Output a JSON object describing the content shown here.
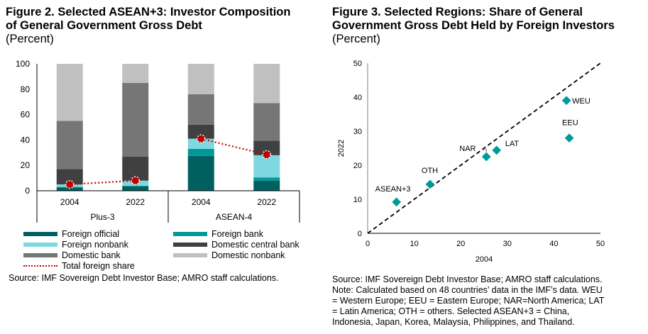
{
  "figure2": {
    "title_line1": "Figure 2. Selected ASEAN+3: Investor Composition",
    "title_line2": "of General Government Gross Debt",
    "unit": "(Percent)",
    "source": "Source: IMF Sovereign Debt Investor Base; AMRO staff calculations."
  },
  "figure3": {
    "title_line1": "Figure 3. Selected Regions: Share of General",
    "title_line2": "Government Gross Debt Held by Foreign Investors",
    "unit": "(Percent)",
    "source_lines": [
      "Source: IMF Sovereign Debt Investor Base; AMRO staff calculations.",
      "Note: Calculated based on 48 countries’ data in the IMF’s data. WEU",
      "= Western Europe; EEU = Eastern Europe; NAR=North America; LAT",
      "= Latin America; OTH = others. Selected ASEAN+3 = China,",
      "Indonesia, Japan, Korea, Malaysia, Philippines, and Thailand."
    ]
  },
  "chart_data": [
    {
      "type": "bar",
      "stacked": true,
      "title": "Figure 2. Selected ASEAN+3: Investor Composition of General Government Gross Debt",
      "ylabel": "Percent",
      "ylim": [
        0,
        100
      ],
      "yticks": [
        0,
        20,
        40,
        60,
        80,
        100
      ],
      "groups": [
        {
          "name": "Plus-3",
          "categories": [
            "2004",
            "2022"
          ]
        },
        {
          "name": "ASEAN-4",
          "categories": [
            "2004",
            "2022"
          ]
        }
      ],
      "categories": [
        "Plus-3 2004",
        "Plus-3 2022",
        "ASEAN-4 2004",
        "ASEAN-4 2022"
      ],
      "series": [
        {
          "name": "Foreign official",
          "color": "#00605f",
          "values": [
            2.5,
            3.5,
            27.5,
            8.0
          ]
        },
        {
          "name": "Foreign bank",
          "color": "#009999",
          "values": [
            0.5,
            0.5,
            5.5,
            2.5
          ]
        },
        {
          "name": "Foreign nonbank",
          "color": "#7fd8e0",
          "values": [
            2.0,
            4.0,
            8.0,
            17.5
          ]
        },
        {
          "name": "Domestic central bank",
          "color": "#404040",
          "values": [
            12.0,
            19.0,
            11.0,
            11.5
          ]
        },
        {
          "name": "Domestic bank",
          "color": "#767676",
          "values": [
            38.0,
            58.0,
            24.0,
            29.5
          ]
        },
        {
          "name": "Domestic nonbank",
          "color": "#c0c0c0",
          "values": [
            45.0,
            15.0,
            24.0,
            31.0
          ]
        }
      ],
      "line_series": {
        "name": "Total foreign share",
        "color": "#c00000",
        "values": [
          5.0,
          8.0,
          41.0,
          28.5
        ]
      },
      "legend": [
        "Foreign official",
        "Foreign bank",
        "Foreign nonbank",
        "Domestic central bank",
        "Domestic bank",
        "Domestic nonbank",
        "Total foreign share"
      ],
      "legend_position": "bottom"
    },
    {
      "type": "scatter",
      "title": "Figure 3. Selected Regions: Share of General Government Gross Debt Held by Foreign Investors",
      "xlabel": "2004",
      "ylabel": "2022",
      "xlim": [
        0,
        50
      ],
      "ylim": [
        0,
        50
      ],
      "xticks": [
        0,
        10,
        20,
        30,
        40,
        50
      ],
      "yticks": [
        0,
        10,
        20,
        30,
        40,
        50
      ],
      "marker_color": "#009999",
      "reference_line": "45-degree",
      "points": [
        {
          "label": "ASEAN+3",
          "x": 6.2,
          "y": 9.2
        },
        {
          "label": "OTH",
          "x": 13.4,
          "y": 14.4
        },
        {
          "label": "NAR",
          "x": 25.5,
          "y": 22.5
        },
        {
          "label": "LAT",
          "x": 27.7,
          "y": 24.4
        },
        {
          "label": "WEU",
          "x": 42.7,
          "y": 39.0
        },
        {
          "label": "EEU",
          "x": 43.3,
          "y": 28.0
        }
      ]
    }
  ]
}
